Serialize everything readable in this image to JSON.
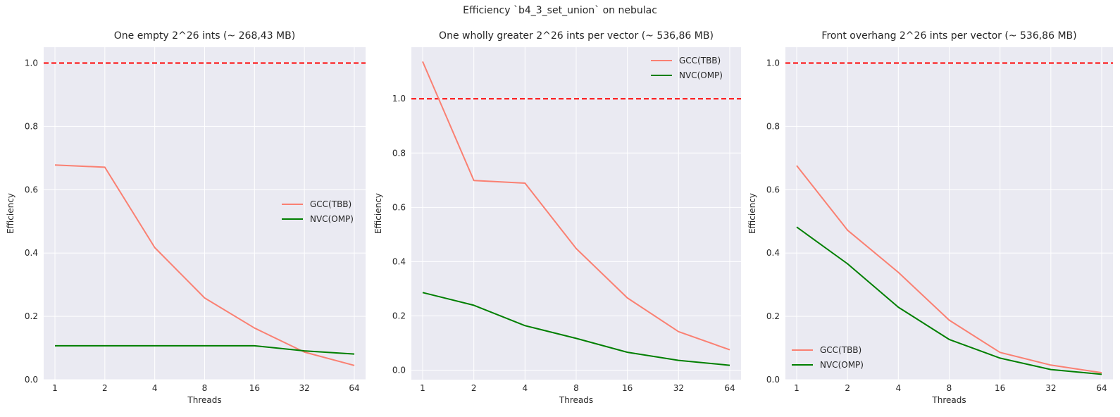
{
  "suptitle": "Efficiency `b4_3_set_union` on nebulac",
  "colors": {
    "gcc": "#fa8072",
    "nvc": "#007f00",
    "reference": "#ff0000",
    "axes_bg": "#eaeaf2",
    "grid": "#ffffff"
  },
  "chart_data": [
    {
      "type": "line",
      "title": "One empty 2^26 ints (~ 268,43 MB)",
      "xlabel": "Threads",
      "ylabel": "Efficiency",
      "categories": [
        "1",
        "2",
        "4",
        "8",
        "16",
        "32",
        "64"
      ],
      "ylim": [
        0,
        1.05
      ],
      "yticks": [
        "0.0",
        "0.2",
        "0.4",
        "0.6",
        "0.8",
        "1.0"
      ],
      "reference_line": 1.0,
      "legend": "center-right",
      "grid": true,
      "series": [
        {
          "name": "GCC(TBB)",
          "values": [
            0.678,
            0.671,
            0.417,
            0.258,
            0.163,
            0.087,
            0.045
          ]
        },
        {
          "name": "NVC(OMP)",
          "values": [
            0.107,
            0.107,
            0.107,
            0.107,
            0.107,
            0.091,
            0.081
          ]
        }
      ]
    },
    {
      "type": "line",
      "title": "One wholly greater 2^26 ints per vector (~ 536,86 MB)",
      "xlabel": "Threads",
      "ylabel": "Efficiency",
      "categories": [
        "1",
        "2",
        "4",
        "8",
        "16",
        "32",
        "64"
      ],
      "ylim": [
        -0.035,
        1.19
      ],
      "yticks": [
        "0.0",
        "0.2",
        "0.4",
        "0.6",
        "0.8",
        "1.0"
      ],
      "reference_line": 1.0,
      "legend": "top-right",
      "grid": true,
      "series": [
        {
          "name": "GCC(TBB)",
          "values": [
            1.137,
            0.699,
            0.689,
            0.448,
            0.266,
            0.142,
            0.075
          ]
        },
        {
          "name": "NVC(OMP)",
          "values": [
            0.286,
            0.239,
            0.164,
            0.117,
            0.066,
            0.036,
            0.018
          ]
        }
      ]
    },
    {
      "type": "line",
      "title": "Front overhang 2^26 ints per vector (~ 536,86 MB)",
      "xlabel": "Threads",
      "ylabel": "Efficiency",
      "categories": [
        "1",
        "2",
        "4",
        "8",
        "16",
        "32",
        "64"
      ],
      "ylim": [
        0,
        1.05
      ],
      "yticks": [
        "0.0",
        "0.2",
        "0.4",
        "0.6",
        "0.8",
        "1.0"
      ],
      "reference_line": 1.0,
      "legend": "bottom-left",
      "grid": true,
      "series": [
        {
          "name": "GCC(TBB)",
          "values": [
            0.676,
            0.472,
            0.339,
            0.188,
            0.086,
            0.046,
            0.022
          ]
        },
        {
          "name": "NVC(OMP)",
          "values": [
            0.482,
            0.366,
            0.229,
            0.127,
            0.068,
            0.032,
            0.017
          ]
        }
      ]
    }
  ]
}
